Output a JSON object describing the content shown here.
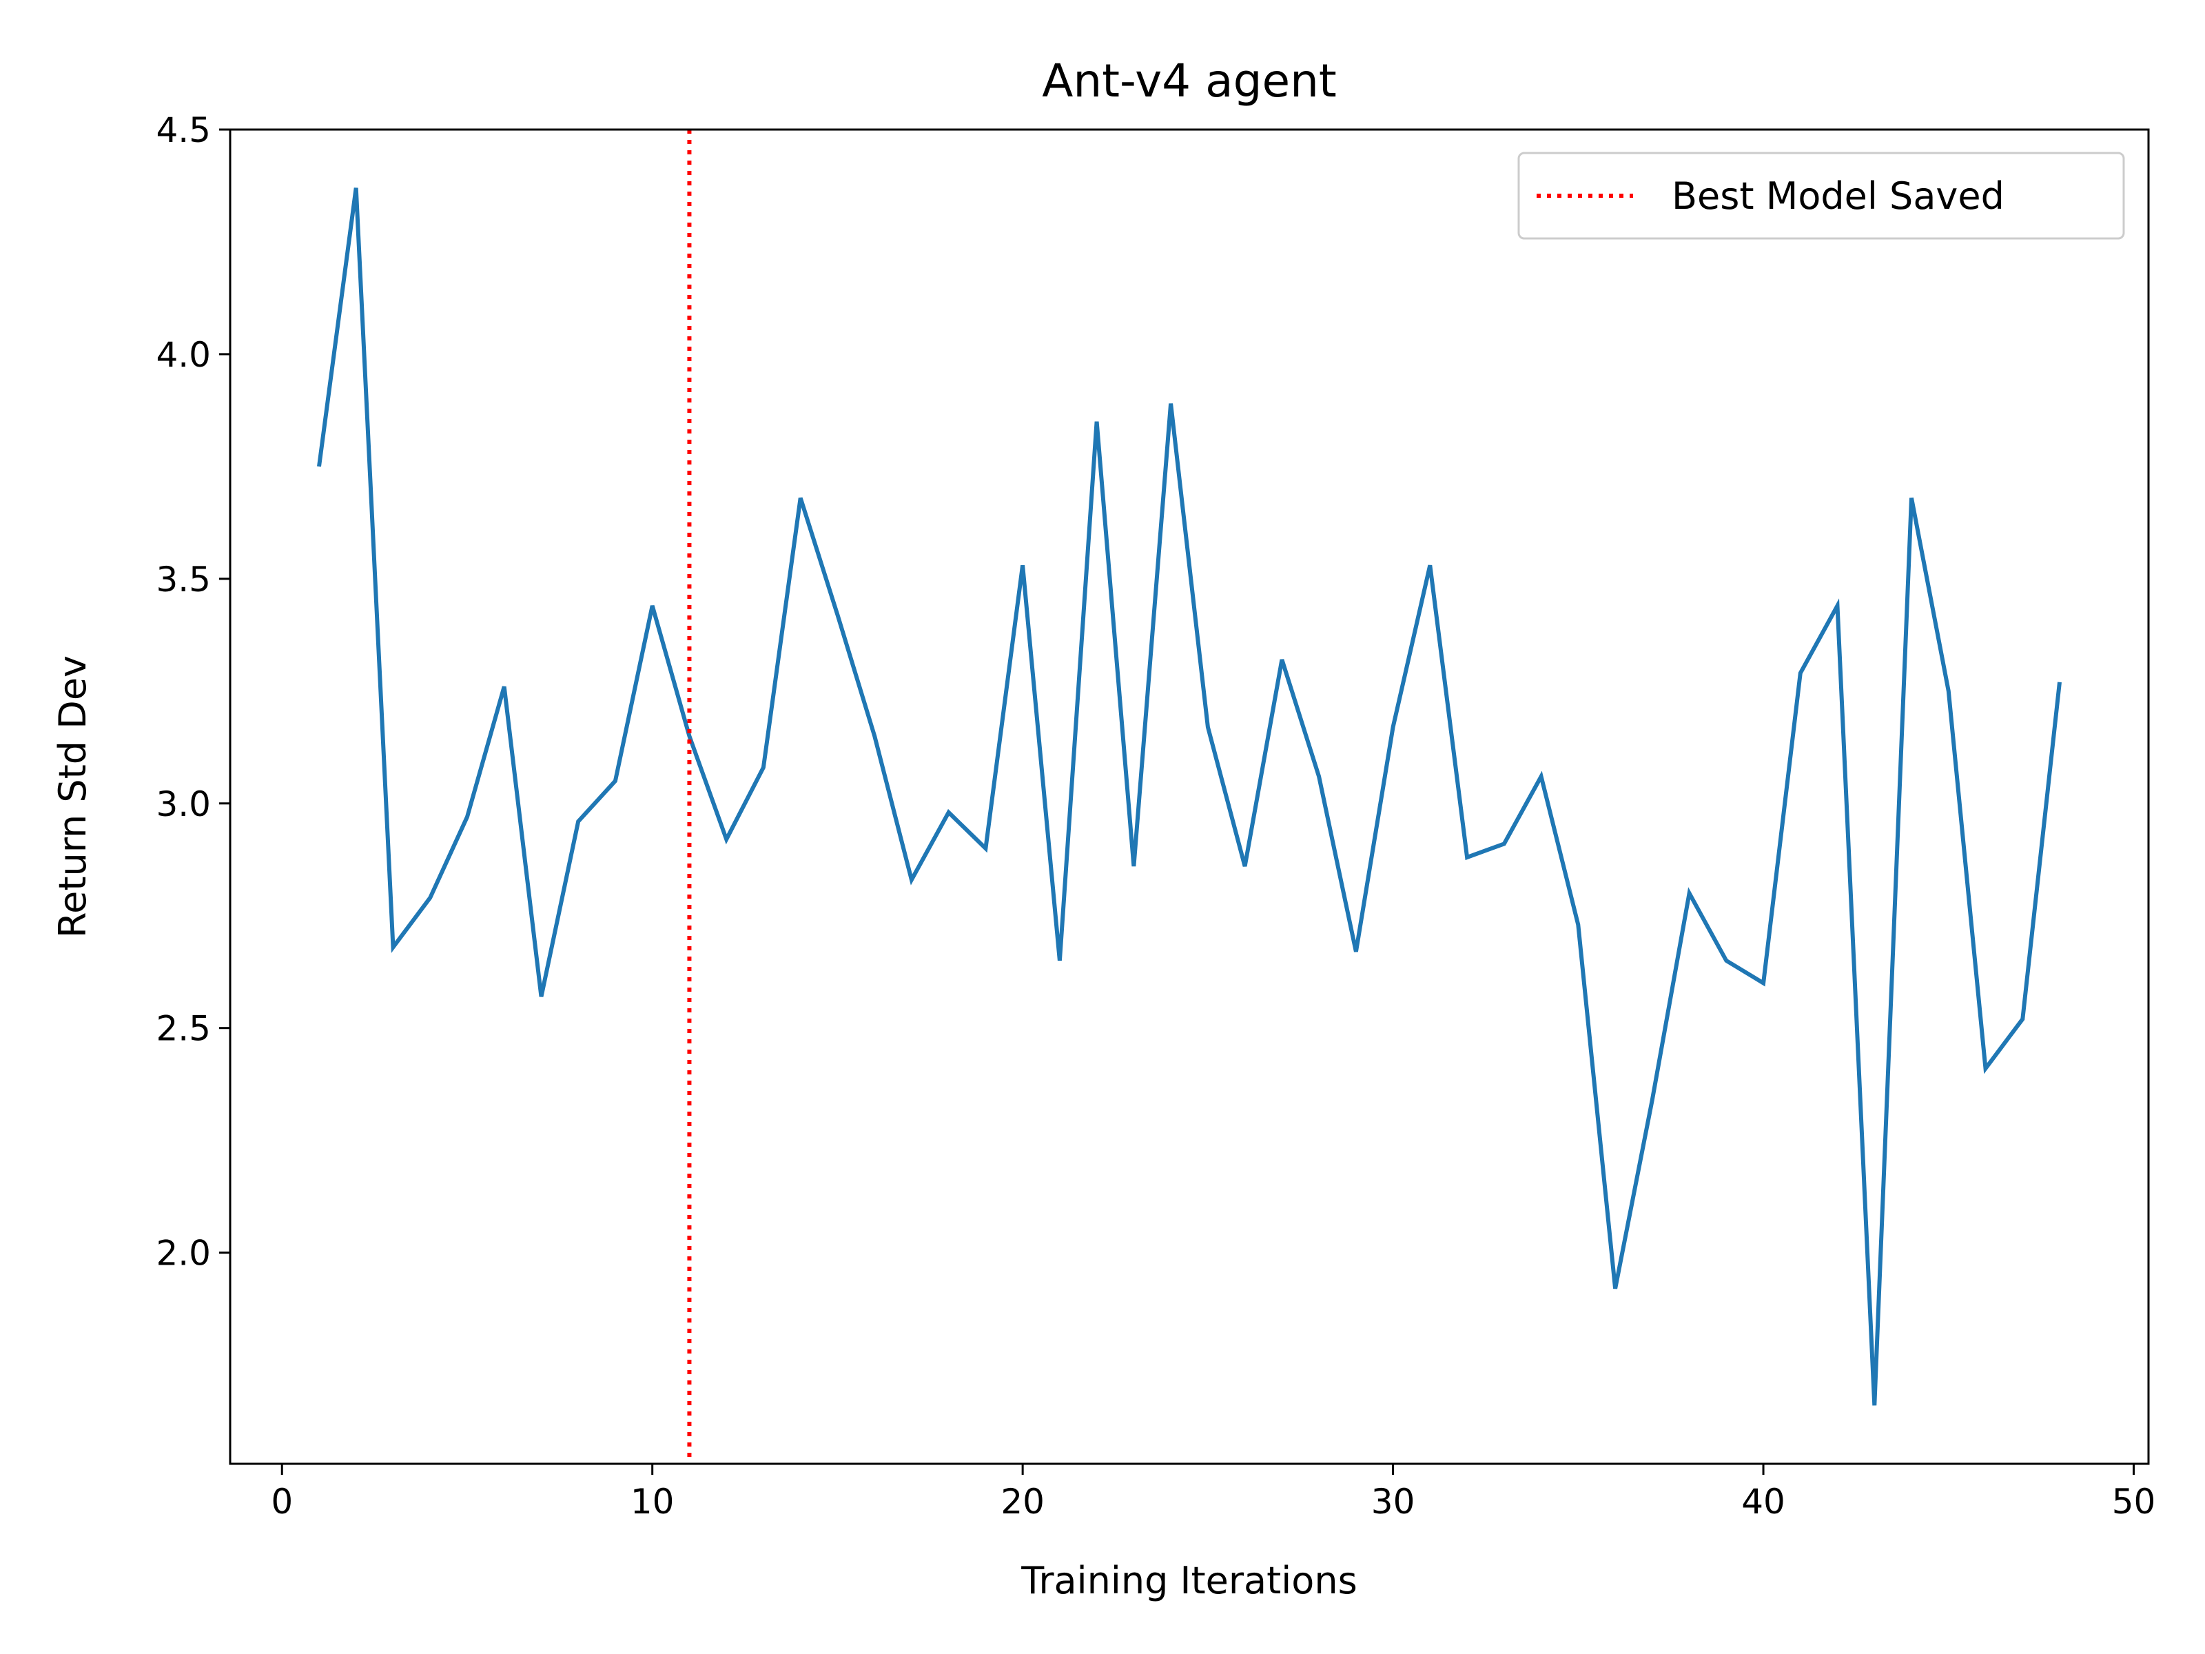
{
  "chart_data": {
    "type": "line",
    "title": "Ant-v4 agent",
    "xlabel": "Training Iterations",
    "ylabel": "Return Std Dev",
    "xlim": [
      -1.4,
      50.4
    ],
    "ylim": [
      1.53,
      4.5
    ],
    "x_ticks": [
      0,
      10,
      20,
      30,
      40,
      50
    ],
    "y_ticks": [
      2.0,
      2.5,
      3.0,
      3.5,
      4.0,
      4.5
    ],
    "grid": false,
    "legend": {
      "placement": "top-right",
      "entries": [
        "Best Model Saved"
      ]
    },
    "series": [
      {
        "color": "#1f77b4",
        "style": "solid",
        "x": [
          1,
          2,
          3,
          4,
          5,
          6,
          7,
          8,
          9,
          10,
          11,
          12,
          13,
          14,
          15,
          16,
          17,
          18,
          19,
          20,
          21,
          22,
          23,
          24,
          25,
          26,
          27,
          28,
          29,
          30,
          31,
          32,
          33,
          34,
          35,
          36,
          37,
          38,
          39,
          40,
          41,
          42,
          43,
          44,
          45,
          46,
          47,
          48
        ],
        "y": [
          3.75,
          4.37,
          2.68,
          2.79,
          2.97,
          3.26,
          2.57,
          2.96,
          3.05,
          3.44,
          3.15,
          2.92,
          3.08,
          3.68,
          3.42,
          3.15,
          2.83,
          2.98,
          2.9,
          3.53,
          2.65,
          3.85,
          2.86,
          3.89,
          3.17,
          2.86,
          3.32,
          3.06,
          2.67,
          3.17,
          3.53,
          2.88,
          2.91,
          3.06,
          2.73,
          1.92,
          2.34,
          2.8,
          2.65,
          2.6,
          3.29,
          3.44,
          1.66,
          3.68,
          3.25,
          2.41,
          2.52,
          3.27
        ]
      }
    ],
    "vlines": [
      {
        "name": "Best Model Saved",
        "x": 11,
        "color": "#ff0000",
        "style": "dotted"
      }
    ]
  }
}
